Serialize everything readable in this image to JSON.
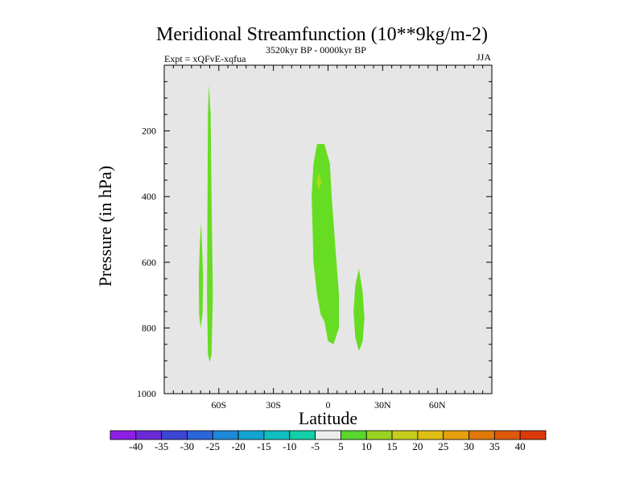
{
  "chart_data": {
    "type": "contour",
    "title": "Meridional Streamfunction (10**9kg/m-2)",
    "left_string": "Expt = xQFvE-xqfua",
    "center_string": "3520kyr BP - 0000kyr BP",
    "right_string": "JJA",
    "xlabel": "Latitude",
    "ylabel": "Pressure (in hPa)",
    "xlim": [
      -90,
      90
    ],
    "ylim": [
      1000,
      0
    ],
    "x_ticks": [
      {
        "value": -60,
        "label": "60S"
      },
      {
        "value": -30,
        "label": "30S"
      },
      {
        "value": 0,
        "label": "0"
      },
      {
        "value": 30,
        "label": "30N"
      },
      {
        "value": 60,
        "label": "60N"
      }
    ],
    "y_ticks": [
      {
        "value": 200,
        "label": "200"
      },
      {
        "value": 400,
        "label": "400"
      },
      {
        "value": 600,
        "label": "600"
      },
      {
        "value": 800,
        "label": "800"
      },
      {
        "value": 1000,
        "label": "1000"
      }
    ],
    "missing_color": "#e6e6e6",
    "regions": [
      {
        "level": 5,
        "color": "#66dd22",
        "label": "near 63S tall cell",
        "points": [
          [
            -65.5,
            60
          ],
          [
            -64.5,
            150
          ],
          [
            -64,
            400
          ],
          [
            -63.3,
            700
          ],
          [
            -64,
            880
          ],
          [
            -65,
            905
          ],
          [
            -66,
            880
          ],
          [
            -66.5,
            700
          ],
          [
            -66.2,
            400
          ],
          [
            -66,
            150
          ]
        ]
      },
      {
        "level": 5,
        "color": "#66dd22",
        "label": "near 70S cell",
        "points": [
          [
            -69.8,
            480
          ],
          [
            -69.2,
            550
          ],
          [
            -68.6,
            650
          ],
          [
            -69,
            760
          ],
          [
            -70,
            800
          ],
          [
            -70.8,
            760
          ],
          [
            -71,
            650
          ],
          [
            -70.5,
            550
          ]
        ]
      },
      {
        "level": 5,
        "color": "#66dd22",
        "label": "near equator cell",
        "points": [
          [
            -8,
            300
          ],
          [
            -6,
            240
          ],
          [
            -2,
            240
          ],
          [
            1,
            300
          ],
          [
            2,
            400
          ],
          [
            4,
            550
          ],
          [
            6,
            700
          ],
          [
            6,
            800
          ],
          [
            3,
            850
          ],
          [
            0,
            840
          ],
          [
            -2,
            780
          ],
          [
            -4,
            760
          ],
          [
            -6,
            700
          ],
          [
            -8,
            600
          ],
          [
            -8.5,
            500
          ],
          [
            -9,
            400
          ]
        ]
      },
      {
        "level": 5,
        "color": "#66dd22",
        "label": "near 17N cell",
        "points": [
          [
            17,
            620
          ],
          [
            19,
            690
          ],
          [
            20,
            770
          ],
          [
            19,
            840
          ],
          [
            17,
            870
          ],
          [
            15,
            830
          ],
          [
            14,
            750
          ],
          [
            15,
            670
          ]
        ]
      },
      {
        "level": 10,
        "color": "#a6dd1a",
        "label": "local max near 4S",
        "points": [
          [
            -5,
            330
          ],
          [
            -3.5,
            355
          ],
          [
            -5,
            380
          ],
          [
            -6.5,
            355
          ]
        ]
      }
    ],
    "colorbar": {
      "labels": [
        "-40",
        "-35",
        "-30",
        "-25",
        "-20",
        "-15",
        "-10",
        "-5",
        "5",
        "10",
        "15",
        "20",
        "25",
        "30",
        "35",
        "40"
      ],
      "colors": [
        "#8f1fe6",
        "#6b2ad6",
        "#3d45d4",
        "#2a66d8",
        "#1d88d8",
        "#13a5d2",
        "#10bdc0",
        "#12cfa6",
        "#ececec",
        "#58d72c",
        "#9ad222",
        "#c5cd1c",
        "#e0be14",
        "#e6a00e",
        "#e0780a",
        "#dc5a0a",
        "#db3a08"
      ]
    }
  }
}
